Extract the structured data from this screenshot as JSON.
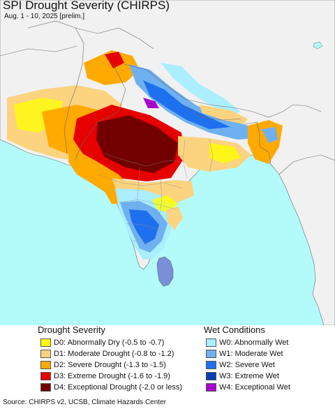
{
  "title": "SPI Drought Severity (CHIRPS)",
  "subtitle": "Aug. 1 - 10, 2025 [prelim.]",
  "colors": {
    "ocean": "#b3fbfb",
    "land": "#f1f1f1",
    "border": "#6a6a6a"
  },
  "legend": {
    "drought": {
      "title": "Drought Severity",
      "items": [
        {
          "code": "D0",
          "label": "D0: Abnormally Dry (-0.5 to -0.7)",
          "color": "#ffff00"
        },
        {
          "code": "D1",
          "label": "D1: Moderate Drought (-0.8 to -1.2)",
          "color": "#fcd37f"
        },
        {
          "code": "D2",
          "label": "D2: Severe Drought (-1.3 to -1.5)",
          "color": "#ffaa00"
        },
        {
          "code": "D3",
          "label": "D3: Extreme Drought (-1.6 to -1.9)",
          "color": "#e60000"
        },
        {
          "code": "D4",
          "label": "D4: Exceptional Drought (-2.0 or less)",
          "color": "#730000"
        }
      ]
    },
    "wet": {
      "title": "Wet Conditions",
      "items": [
        {
          "code": "W0",
          "label": "W0: Abnormally Wet",
          "color": "#aaeeff"
        },
        {
          "code": "W1",
          "label": "W1: Moderate Wet",
          "color": "#6fb0f0"
        },
        {
          "code": "W2",
          "label": "W2: Severe Wet",
          "color": "#1f70ee"
        },
        {
          "code": "W3",
          "label": "W3: Extreme Wet",
          "color": "#0a3eb4"
        },
        {
          "code": "W4",
          "label": "W4: Exceptional Wet",
          "color": "#aa00cc"
        }
      ]
    }
  },
  "source": "Source: CHIRPS v2, UCSB, Climate Hazards Center"
}
